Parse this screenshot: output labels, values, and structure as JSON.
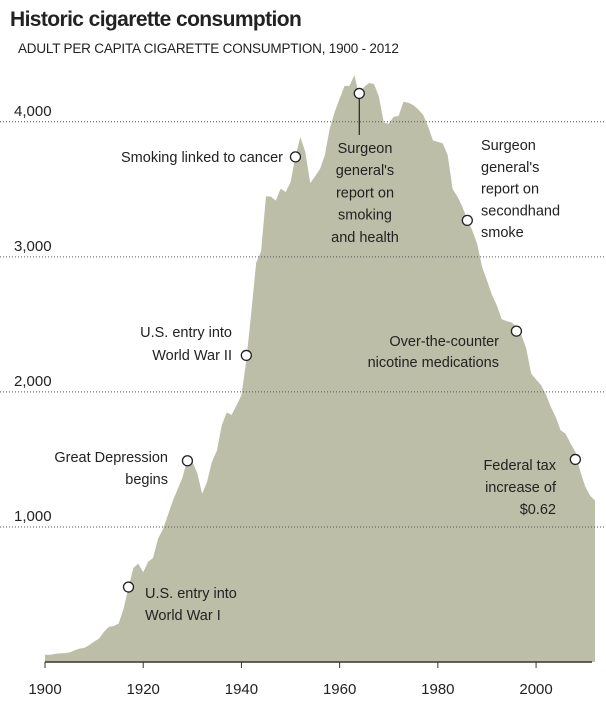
{
  "chart_data": {
    "type": "area",
    "title": "Historic cigarette consumption",
    "subtitle": "ADULT PER CAPITA CIGARETTE CONSUMPTION, 1900 - 2012",
    "x": [
      1900,
      1901,
      1902,
      1903,
      1904,
      1905,
      1906,
      1907,
      1908,
      1909,
      1910,
      1911,
      1912,
      1913,
      1914,
      1915,
      1916,
      1917,
      1918,
      1919,
      1920,
      1921,
      1922,
      1923,
      1924,
      1925,
      1926,
      1927,
      1928,
      1929,
      1930,
      1931,
      1932,
      1933,
      1934,
      1935,
      1936,
      1937,
      1938,
      1939,
      1940,
      1941,
      1942,
      1943,
      1944,
      1945,
      1946,
      1947,
      1948,
      1949,
      1950,
      1951,
      1952,
      1953,
      1954,
      1955,
      1956,
      1957,
      1958,
      1959,
      1960,
      1961,
      1962,
      1963,
      1964,
      1965,
      1966,
      1967,
      1968,
      1969,
      1970,
      1971,
      1972,
      1973,
      1974,
      1975,
      1976,
      1977,
      1978,
      1979,
      1980,
      1981,
      1982,
      1983,
      1984,
      1985,
      1986,
      1987,
      1988,
      1989,
      1990,
      1991,
      1992,
      1993,
      1994,
      1995,
      1996,
      1997,
      1998,
      1999,
      2000,
      2001,
      2002,
      2003,
      2004,
      2005,
      2006,
      2007,
      2008,
      2009,
      2010,
      2011,
      2012
    ],
    "series": [
      {
        "color": "#bcbea8",
        "values": [
          54,
          53,
          60,
          64,
          66,
          70,
          86,
          99,
          105,
          125,
          151,
          173,
          223,
          260,
          267,
          285,
          395,
          551,
          697,
          727,
          665,
          742,
          770,
          911,
          982,
          1085,
          1191,
          1279,
          1366,
          1504,
          1485,
          1399,
          1245,
          1334,
          1483,
          1564,
          1754,
          1847,
          1830,
          1900,
          1976,
          2236,
          2585,
          2956,
          3039,
          3449,
          3446,
          3416,
          3505,
          3480,
          3552,
          3744,
          3886,
          3778,
          3546,
          3597,
          3650,
          3755,
          3953,
          4073,
          4171,
          4266,
          4266,
          4345,
          4194,
          4258,
          4287,
          4280,
          4186,
          3993,
          3985,
          4037,
          4043,
          4148,
          4141,
          4123,
          4092,
          4051,
          3967,
          3861,
          3851,
          3840,
          3753,
          3502,
          3446,
          3370,
          3274,
          3197,
          3096,
          2926,
          2826,
          2720,
          2641,
          2539,
          2524,
          2515,
          2482,
          2423,
          2320,
          2136,
          2092,
          2051,
          1982,
          1890,
          1814,
          1716,
          1691,
          1619,
          1557,
          1411,
          1300,
          1232,
          1196
        ]
      }
    ],
    "xlim": [
      1900,
      2012
    ],
    "xticks": [
      1900,
      1920,
      1940,
      1960,
      1980,
      2000
    ],
    "ylim": [
      0,
      4450
    ],
    "yticks": [
      {
        "value": 1000,
        "label": "1,000"
      },
      {
        "value": 2000,
        "label": "2,000"
      },
      {
        "value": 3000,
        "label": "3,000"
      },
      {
        "value": 4000,
        "label": "4,000"
      }
    ],
    "grid": true,
    "annotations": [
      {
        "x": 1917,
        "y": 555,
        "lines": [
          "U.S. entry into",
          "World War I"
        ]
      },
      {
        "x": 1929,
        "y": 1490,
        "lines": [
          "Great Depression",
          "begins"
        ]
      },
      {
        "x": 1941,
        "y": 2270,
        "lines": [
          "U.S. entry into",
          "World War II"
        ]
      },
      {
        "x": 1951,
        "y": 3740,
        "lines": [
          "Smoking linked to cancer"
        ]
      },
      {
        "x": 1964,
        "y": 4210,
        "lines": [
          "Surgeon",
          "general's",
          "report on",
          "smoking",
          "and health"
        ]
      },
      {
        "x": 1986,
        "y": 3270,
        "lines": [
          "Surgeon",
          "general's",
          "report on",
          "secondhand",
          "smoke"
        ]
      },
      {
        "x": 1996,
        "y": 2450,
        "lines": [
          "Over-the-counter",
          "nicotine medications"
        ]
      },
      {
        "x": 2008,
        "y": 1500,
        "lines": [
          "Federal tax",
          "increase of",
          "$0.62"
        ]
      }
    ]
  }
}
